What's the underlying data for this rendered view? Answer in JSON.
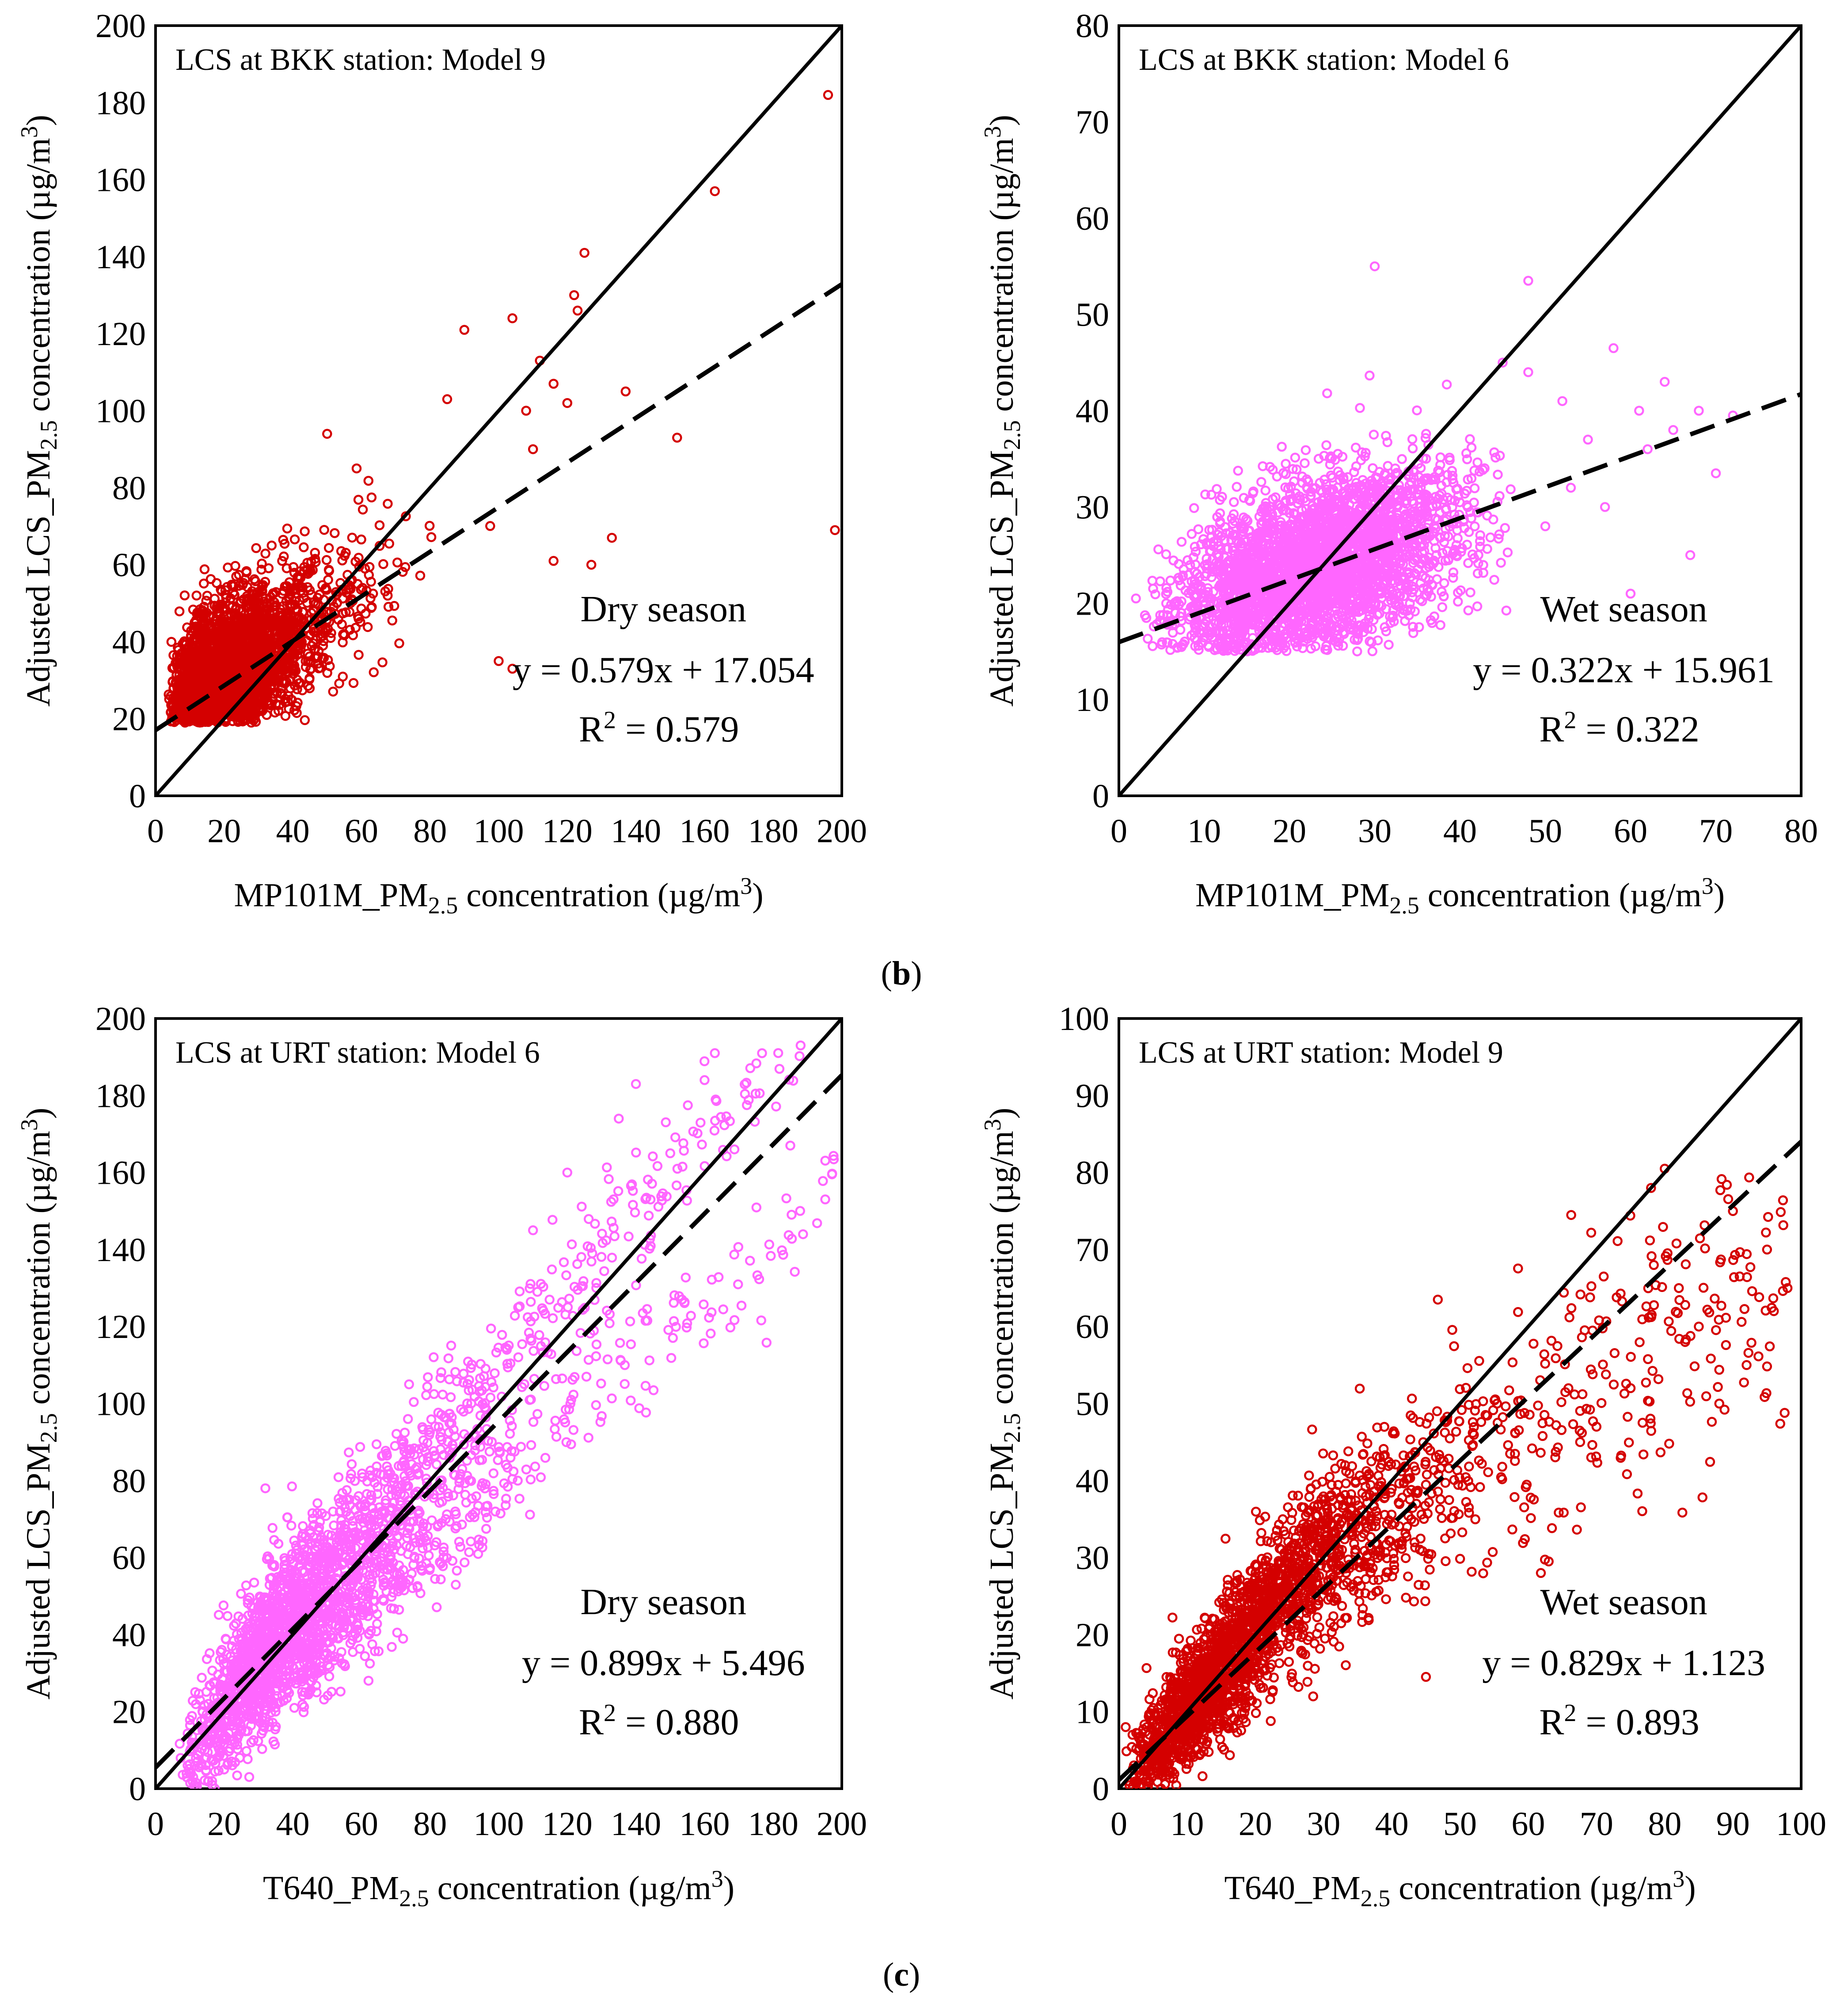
{
  "figure": {
    "panel_labels": [
      {
        "text_open": "(",
        "letter": "b",
        "text_close": ")"
      },
      {
        "text_open": "(",
        "letter": "c",
        "text_close": ")"
      }
    ]
  },
  "chart_data": [
    {
      "type": "scatter",
      "title": "LCS at BKK station: Model 9",
      "xlabel": "MP101M_PM2.5 concentration (µg/m3)",
      "ylabel": "Adjusted LCS_PM2.5 concentration (µg/m3)",
      "xaxis_label": {
        "main": "MP101M_PM",
        "sub": "2.5",
        "mid": "concentration (µg/m",
        "sup": "3",
        "end": ")"
      },
      "yaxis_label": {
        "main": "Adjusted LCS_PM",
        "sub": "2.5",
        "mid": "concentration (µg/m",
        "sup": "3",
        "end": ")"
      },
      "xlim": [
        0,
        200
      ],
      "ylim": [
        0,
        200
      ],
      "xticks": [
        0,
        20,
        40,
        60,
        80,
        100,
        120,
        140,
        160,
        180,
        200
      ],
      "yticks": [
        0,
        20,
        40,
        60,
        80,
        100,
        120,
        140,
        160,
        180,
        200
      ],
      "point_color": "#d40000",
      "season": "Dry season",
      "equation": "y = 0.579x + 17.054",
      "r2_label": {
        "main": "R",
        "sup": "2",
        "rest": " = 0.579"
      },
      "fit": {
        "slope": 0.579,
        "intercept": 17.054
      },
      "reference_line": "1:1",
      "scatter": {
        "n": 3000,
        "xmin": 3,
        "xmax": 105,
        "center": 42,
        "spread": 14,
        "noise": 10,
        "ymin": 19,
        "ymax": 110,
        "shape": "skew-right"
      },
      "sample_points": [
        [
          196,
          182
        ],
        [
          163,
          157
        ],
        [
          125,
          141
        ],
        [
          198,
          69
        ],
        [
          152,
          93
        ],
        [
          137,
          105
        ],
        [
          122,
          130
        ],
        [
          123,
          126
        ],
        [
          116,
          107
        ],
        [
          90,
          121
        ],
        [
          104,
          124
        ],
        [
          112,
          113
        ],
        [
          120,
          102
        ],
        [
          116,
          61
        ],
        [
          133,
          67
        ],
        [
          104,
          33
        ],
        [
          100,
          35
        ],
        [
          50,
          94
        ],
        [
          85,
          103
        ],
        [
          108,
          100
        ],
        [
          127,
          60
        ],
        [
          110,
          90
        ]
      ]
    },
    {
      "type": "scatter",
      "title": "LCS at BKK station: Model 6",
      "xlabel": "MP101M_PM2.5 concentration (µg/m3)",
      "ylabel": "Adjusted LCS_PM2.5 concentration (µg/m3)",
      "xaxis_label": {
        "main": "MP101M_PM",
        "sub": "2.5",
        "mid": "concentration (µg/m",
        "sup": "3",
        "end": ")"
      },
      "yaxis_label": {
        "main": "Adjusted LCS_PM",
        "sub": "2.5",
        "mid": "concentration (µg/m",
        "sup": "3",
        "end": ")"
      },
      "xlim": [
        0,
        80
      ],
      "ylim": [
        0,
        80
      ],
      "xticks": [
        0,
        10,
        20,
        30,
        40,
        50,
        60,
        70,
        80
      ],
      "yticks": [
        0,
        10,
        20,
        30,
        40,
        50,
        60,
        70,
        80
      ],
      "point_color": "#ff66ff",
      "season": "Wet season",
      "equation": "y = 0.322x + 15.961",
      "r2_label": {
        "main": "R",
        "sup": "2",
        "rest": " = 0.322"
      },
      "fit": {
        "slope": 0.322,
        "intercept": 15.961
      },
      "reference_line": "1:1",
      "scatter": {
        "n": 3200,
        "xmin": 3,
        "xmax": 46,
        "center": 23,
        "spread": 8.5,
        "noise": 5,
        "ymin": 15,
        "ymax": 47,
        "shape": "normal"
      },
      "sample_points": [
        [
          30,
          55
        ],
        [
          48,
          53.5
        ],
        [
          58,
          46.5
        ],
        [
          64,
          43
        ],
        [
          72,
          39.5
        ],
        [
          67,
          25
        ],
        [
          60,
          21
        ],
        [
          55,
          37
        ],
        [
          52,
          41
        ],
        [
          48,
          44
        ],
        [
          62,
          36
        ],
        [
          70,
          33.5
        ],
        [
          65,
          38
        ],
        [
          57,
          30
        ],
        [
          50,
          28
        ],
        [
          45,
          45
        ],
        [
          53,
          32
        ],
        [
          61,
          40
        ],
        [
          68,
          40
        ],
        [
          2,
          20.5
        ]
      ]
    },
    {
      "type": "scatter",
      "title": "LCS at URT station: Model 6",
      "xlabel": "T640_PM2.5 concentration (µg/m3)",
      "ylabel": "Adjusted LCS_PM2.5 concentration (µg/m3)",
      "xaxis_label": {
        "main": "T640_PM",
        "sub": "2.5",
        "mid": "concentration (µg/m",
        "sup": "3",
        "end": ")"
      },
      "yaxis_label": {
        "main": "Adjusted LCS_PM",
        "sub": "2.5",
        "mid": "concentration (µg/m",
        "sup": "3",
        "end": ")"
      },
      "xlim": [
        0,
        200
      ],
      "ylim": [
        0,
        200
      ],
      "xticks": [
        0,
        20,
        40,
        60,
        80,
        100,
        120,
        140,
        160,
        180,
        200
      ],
      "yticks": [
        0,
        20,
        40,
        60,
        80,
        100,
        120,
        140,
        160,
        180,
        200
      ],
      "point_color": "#ff66ff",
      "season": "Dry season",
      "equation": "y = 0.899x + 5.496",
      "r2_label": {
        "main": "R",
        "sup": "2",
        "rest": " = 0.880"
      },
      "fit": {
        "slope": 0.899,
        "intercept": 5.496
      },
      "reference_line": "1:1",
      "scatter": {
        "n": 2400,
        "xmin": 7,
        "xmax": 198,
        "center": 40,
        "spread": 30,
        "noise": 9,
        "ymin": 0,
        "ymax": 192,
        "shape": "banded"
      },
      "sample_points": [
        [
          188,
          193
        ],
        [
          163,
          191
        ],
        [
          140,
          183
        ],
        [
          160,
          184
        ],
        [
          32,
          78
        ],
        [
          185,
          167
        ],
        [
          135,
          174
        ],
        [
          120,
          160
        ],
        [
          110,
          145
        ],
        [
          150,
          165
        ]
      ]
    },
    {
      "type": "scatter",
      "title": "LCS at URT station: Model 9",
      "xlabel": "T640_PM2.5 concentration (µg/m3)",
      "ylabel": "Adjusted LCS_PM2.5 concentration (µg/m3)",
      "xaxis_label": {
        "main": "T640_PM",
        "sub": "2.5",
        "mid": "concentration (µg/m",
        "sup": "3",
        "end": ")"
      },
      "yaxis_label": {
        "main": "Adjusted LCS_PM",
        "sub": "2.5",
        "mid": "concentration (µg/m",
        "sup": "3",
        "end": ")"
      },
      "xlim": [
        0,
        100
      ],
      "ylim": [
        0,
        100
      ],
      "xticks": [
        0,
        10,
        20,
        30,
        40,
        50,
        60,
        70,
        80,
        90,
        100
      ],
      "yticks": [
        0,
        10,
        20,
        30,
        40,
        50,
        60,
        70,
        80,
        90,
        100
      ],
      "point_color": "#d40000",
      "season": "Wet season",
      "equation": "y = 0.829x + 1.123",
      "r2_label": {
        "main": "R",
        "sup": "2",
        "rest": " = 0.893"
      },
      "fit": {
        "slope": 0.829,
        "intercept": 1.123
      },
      "reference_line": "1:1",
      "scatter": {
        "n": 2400,
        "xmin": 1,
        "xmax": 98,
        "center": 15,
        "spread": 14,
        "noise": 5,
        "ymin": 0,
        "ymax": 81,
        "shape": "curved"
      },
      "sample_points": [
        [
          80,
          80.5
        ],
        [
          78,
          78
        ],
        [
          63,
          29.5
        ],
        [
          98,
          65
        ],
        [
          95,
          70
        ],
        [
          90,
          75
        ],
        [
          85,
          60
        ],
        [
          92,
          55
        ],
        [
          88,
          50
        ],
        [
          70,
          47
        ],
        [
          75,
          52
        ],
        [
          96,
          62
        ],
        [
          83,
          58
        ],
        [
          1,
          8
        ],
        [
          2,
          7
        ]
      ]
    }
  ]
}
